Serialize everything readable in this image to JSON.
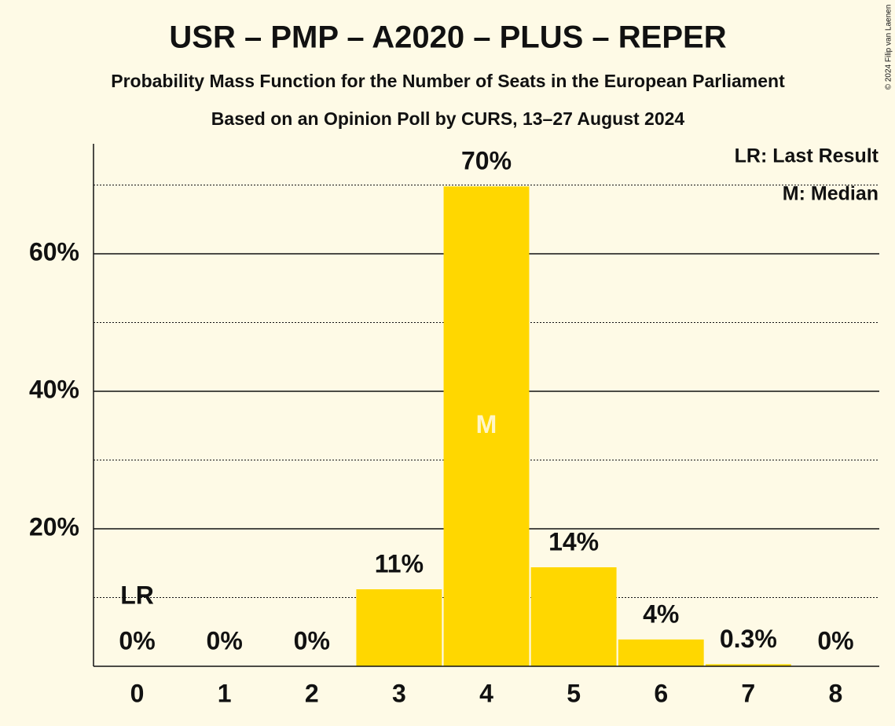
{
  "chart_data": {
    "type": "bar",
    "title": "USR – PMP – A2020 – PLUS – REPER",
    "subtitle": "Probability Mass Function for the Number of Seats in the European Parliament",
    "subtitle2": "Based on an Opinion Poll by CURS, 13–27 August 2024",
    "credit": "© 2024 Filip van Laenen",
    "categories": [
      "0",
      "1",
      "2",
      "3",
      "4",
      "5",
      "6",
      "7",
      "8"
    ],
    "values": [
      0,
      0,
      0,
      11.2,
      69.8,
      14.4,
      3.9,
      0.3,
      0
    ],
    "value_labels": [
      "0%",
      "0%",
      "0%",
      "11%",
      "70%",
      "14%",
      "4%",
      "0.3%",
      "0%"
    ],
    "color": "#ffd700",
    "ylim": [
      0,
      76
    ],
    "yticks": [
      {
        "value": 20,
        "label": "20%"
      },
      {
        "value": 40,
        "label": "40%"
      },
      {
        "value": 60,
        "label": "60%"
      }
    ],
    "minor_yticks": [
      10,
      30,
      50,
      70
    ],
    "grid": true,
    "last_result": "0",
    "last_result_label": "LR",
    "median": "4",
    "median_label": "M",
    "legend": [
      "LR: Last Result",
      "M: Median"
    ]
  }
}
